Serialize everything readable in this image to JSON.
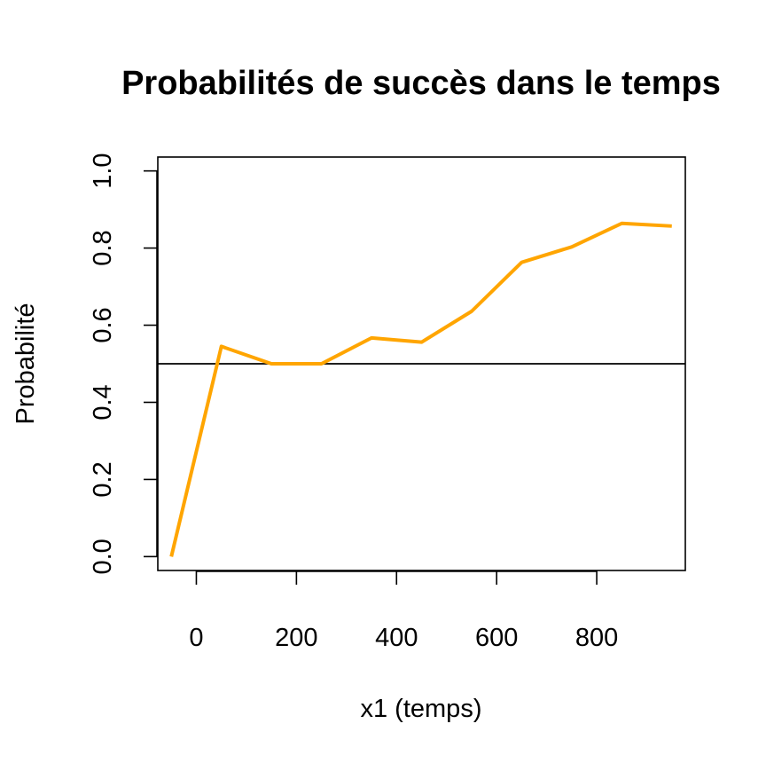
{
  "chart_data": {
    "type": "line",
    "title": "Probabilités de succès dans le temps",
    "xlabel": "x1 (temps)",
    "ylabel": "Probabilité",
    "xlim": [
      -77,
      977
    ],
    "ylim": [
      -0.036,
      1.036
    ],
    "x_ticks": [
      0,
      200,
      400,
      600,
      800
    ],
    "x_tick_labels": [
      "0",
      "200",
      "400",
      "600",
      "800"
    ],
    "y_ticks": [
      0.0,
      0.2,
      0.4,
      0.6,
      0.8,
      1.0
    ],
    "y_tick_labels": [
      "0.0",
      "0.2",
      "0.4",
      "0.6",
      "0.8",
      "1.0"
    ],
    "grid": false,
    "reference_line": {
      "y": 0.5,
      "color": "#000000"
    },
    "series": [
      {
        "color": "#FFA500",
        "x": [
          -50,
          50,
          150,
          250,
          350,
          450,
          550,
          650,
          750,
          850,
          950
        ],
        "values": [
          0.0,
          0.545,
          0.5,
          0.5,
          0.567,
          0.556,
          0.636,
          0.763,
          0.803,
          0.864,
          0.857
        ]
      }
    ]
  }
}
